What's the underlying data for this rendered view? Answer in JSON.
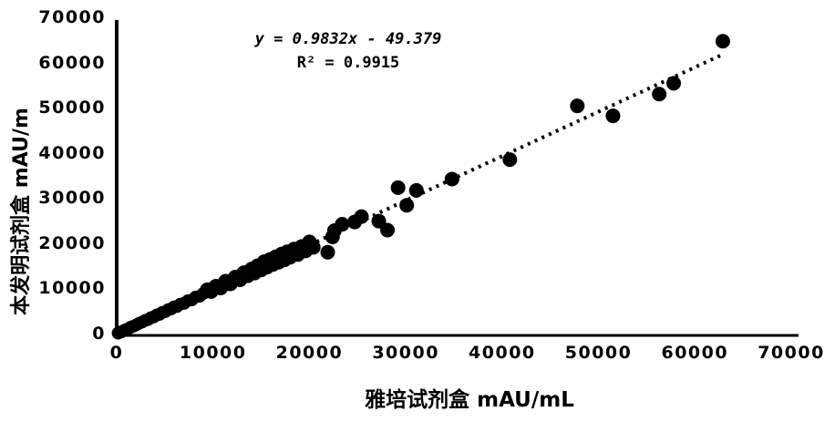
{
  "figure": {
    "annotation": {
      "equation": "y = 0.9832x - 49.379",
      "r_squared": "R² = 0.9915"
    }
  },
  "chart_data": {
    "type": "scatter",
    "title": "",
    "xlabel": "雅培试剂盒 mAU/mL",
    "ylabel": "本发明试剂盒 mAU/m",
    "xlim": [
      0,
      70000
    ],
    "ylim": [
      0,
      70000
    ],
    "x_ticks": [
      0,
      10000,
      20000,
      30000,
      40000,
      50000,
      60000,
      70000
    ],
    "y_ticks": [
      0,
      10000,
      20000,
      30000,
      40000,
      50000,
      60000,
      70000
    ],
    "grid": false,
    "legend": "none",
    "marker_color": "#000000",
    "trendline": {
      "style": "dotted",
      "slope": 0.9832,
      "intercept": -49.379,
      "x_start": 300,
      "x_end": 62800
    },
    "points": [
      [
        150,
        100,
        7
      ],
      [
        400,
        300,
        7
      ],
      [
        650,
        550,
        7
      ],
      [
        900,
        800,
        7
      ],
      [
        1150,
        1000,
        7
      ],
      [
        1450,
        1400,
        7
      ],
      [
        1750,
        1650,
        7
      ],
      [
        2050,
        1950,
        7
      ],
      [
        2350,
        2300,
        7
      ],
      [
        2650,
        2550,
        7
      ],
      [
        2950,
        2900,
        7
      ],
      [
        3250,
        3100,
        7
      ],
      [
        3550,
        3500,
        7
      ],
      [
        3850,
        3700,
        7
      ],
      [
        4150,
        4100,
        7
      ],
      [
        4450,
        4250,
        7
      ],
      [
        4750,
        4700,
        7
      ],
      [
        5050,
        4850,
        7
      ],
      [
        5350,
        5300,
        7
      ],
      [
        5650,
        5450,
        7
      ],
      [
        5950,
        5900,
        7
      ],
      [
        6250,
        6000,
        7
      ],
      [
        6600,
        6500,
        7
      ],
      [
        7000,
        6700,
        7
      ],
      [
        7400,
        7300,
        7
      ],
      [
        7800,
        7450,
        7
      ],
      [
        8200,
        8100,
        7
      ],
      [
        8600,
        8250,
        7
      ],
      [
        9000,
        8900,
        7
      ],
      [
        9400,
        9700,
        8
      ],
      [
        9800,
        9300,
        8
      ],
      [
        10300,
        10500,
        8
      ],
      [
        10800,
        10100,
        8
      ],
      [
        11300,
        11600,
        8
      ],
      [
        11800,
        11000,
        8
      ],
      [
        12300,
        12500,
        8
      ],
      [
        12800,
        11900,
        8
      ],
      [
        13200,
        13500,
        8
      ],
      [
        13600,
        12800,
        8
      ],
      [
        14000,
        14300,
        8
      ],
      [
        14300,
        13400,
        8
      ],
      [
        14600,
        15000,
        8
      ],
      [
        15000,
        14100,
        8
      ],
      [
        15300,
        15900,
        8
      ],
      [
        15600,
        14700,
        8
      ],
      [
        15900,
        16400,
        8
      ],
      [
        16200,
        15300,
        8
      ],
      [
        16500,
        17000,
        8
      ],
      [
        16800,
        15800,
        8
      ],
      [
        17100,
        17600,
        8
      ],
      [
        17400,
        16300,
        8
      ],
      [
        17700,
        18100,
        8
      ],
      [
        18000,
        16900,
        8
      ],
      [
        18400,
        18700,
        8
      ],
      [
        18800,
        17500,
        8
      ],
      [
        19200,
        19300,
        8
      ],
      [
        19600,
        18300,
        8
      ],
      [
        20000,
        20300,
        8
      ],
      [
        20400,
        19100,
        8
      ],
      [
        21900,
        18000,
        8
      ],
      [
        22400,
        21400,
        8
      ],
      [
        22600,
        22800,
        8
      ],
      [
        23400,
        24200,
        8
      ],
      [
        24700,
        24700,
        8
      ],
      [
        25400,
        25900,
        8
      ],
      [
        27200,
        24900,
        8
      ],
      [
        28100,
        22900,
        8
      ],
      [
        29200,
        32300,
        8
      ],
      [
        30100,
        28400,
        8
      ],
      [
        31100,
        31700,
        8
      ],
      [
        34800,
        34200,
        8
      ],
      [
        40800,
        38500,
        8
      ],
      [
        47800,
        50400,
        8
      ],
      [
        51500,
        48200,
        8
      ],
      [
        56300,
        53000,
        8
      ],
      [
        57800,
        55400,
        8
      ],
      [
        62900,
        64700,
        8
      ]
    ]
  }
}
